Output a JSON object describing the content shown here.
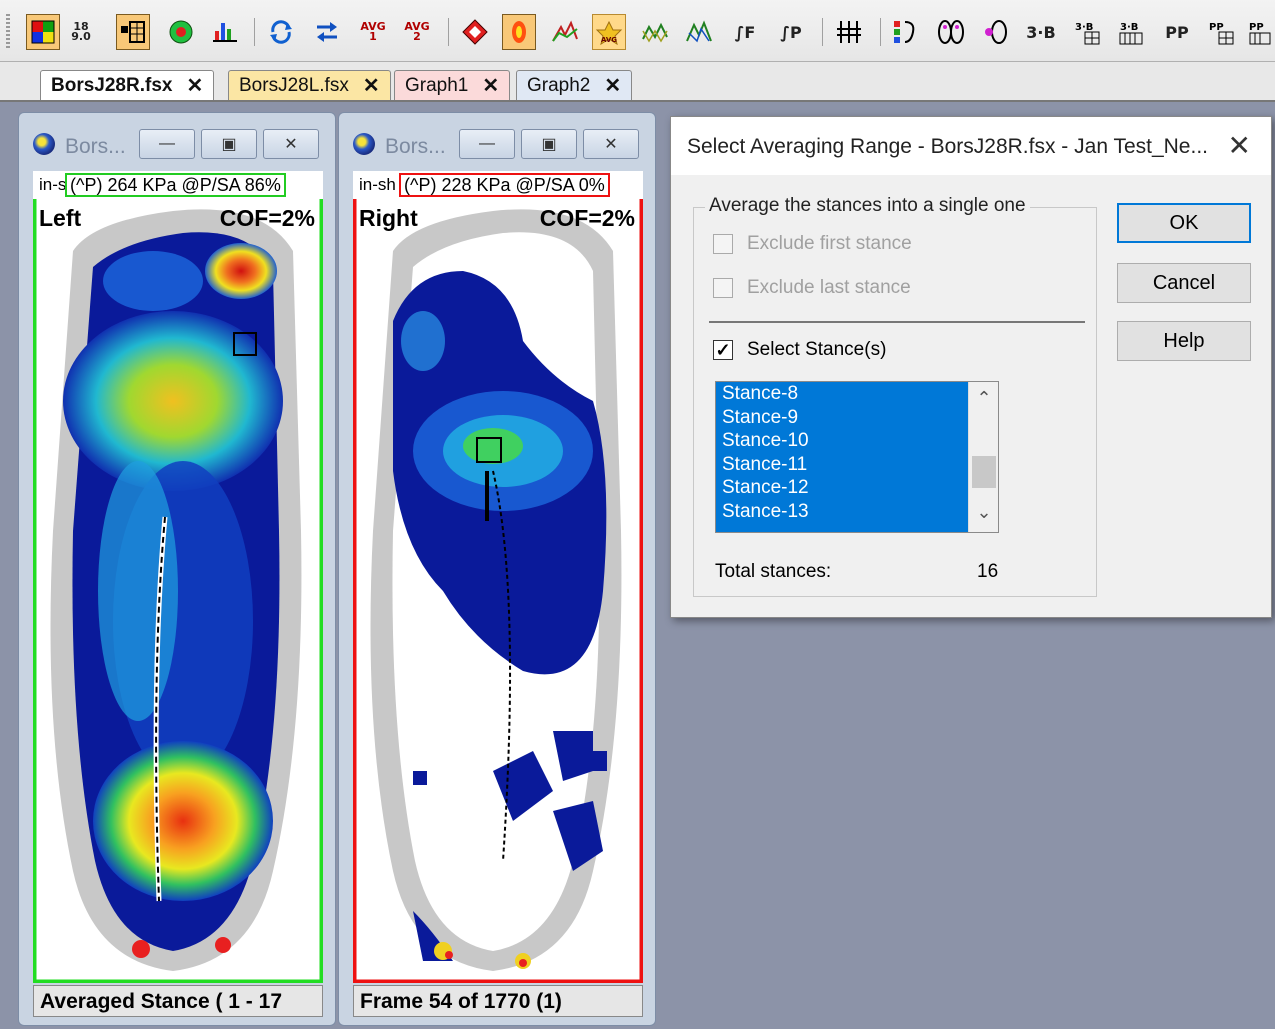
{
  "tabs": [
    {
      "label": "BorsJ28R.fsx",
      "active": true
    },
    {
      "label": "BorsJ28L.fsx",
      "active": false
    },
    {
      "label": "Graph1",
      "active": false
    },
    {
      "label": "Graph2",
      "active": false
    }
  ],
  "tab_close": "✕",
  "toolbar": {
    "readout_top": "18",
    "readout_bottom": "9.0",
    "avg1_label": "AVG\n1",
    "avg2_label": "AVG\n2",
    "int_f_label": "∫F",
    "int_p_label": "∫P",
    "three_b_label": "3·B",
    "pp_label": "PP"
  },
  "left_window": {
    "title": "Bors...",
    "source_prefix": "in-s",
    "peak_text": "(^P) 264 KPa @P/SA 86%",
    "side_label": "Left",
    "cof_label": "COF=2%",
    "status_text": "Averaged Stance ( 1 - 17",
    "frame_color": "#22dd22"
  },
  "right_window": {
    "title": "Bors...",
    "source_prefix": "in-sh",
    "peak_text": "(^P) 228 KPa @P/SA 0%",
    "side_label": "Right",
    "cof_label": "COF=2%",
    "status_text": "Frame 54 of 1770 (1)",
    "frame_color": "#ee1111"
  },
  "dialog": {
    "title": "Select Averaging Range - BorsJ28R.fsx - Jan Test_Ne...",
    "group_label": "Average the stances into a single one",
    "exclude_first_label": "Exclude first stance",
    "exclude_last_label": "Exclude last stance",
    "select_stances_label": "Select Stance(s)",
    "stances": [
      "Stance-8",
      "Stance-9",
      "Stance-10",
      "Stance-11",
      "Stance-12",
      "Stance-13"
    ],
    "total_label": "Total stances:",
    "total_value": "16",
    "ok_label": "OK",
    "cancel_label": "Cancel",
    "help_label": "Help"
  },
  "colors": {
    "selection": "#0078d7",
    "mdi_background": "#8c93a8",
    "pressure_low": "#0a1a9a",
    "pressure_high": "#e81010"
  }
}
